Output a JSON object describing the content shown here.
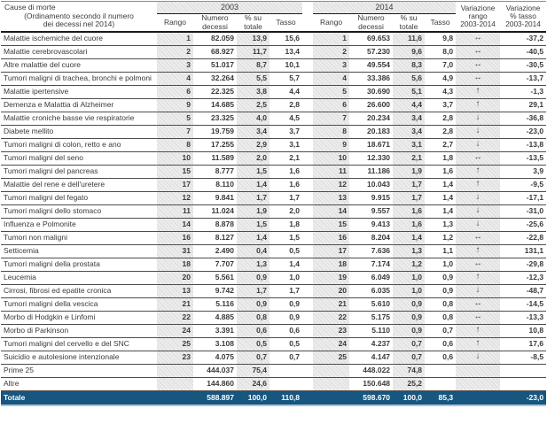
{
  "colors": {
    "total_row_bg": "#17567f",
    "bottom_line": "#a9c7e1",
    "row_border": "#4d4d4d",
    "hatch_gray": "#e4e4e4"
  },
  "table": {
    "header": {
      "cause_title": "Cause di morte",
      "cause_sub1": "(Ordinamento secondo il numero",
      "cause_sub2": "dei decessi nel 2014)",
      "year_left": "2003",
      "year_right": "2014",
      "sub_rank": "Rango",
      "sub_deaths": "Numero decessi",
      "sub_pct": "% su totale",
      "sub_rate": "Tasso",
      "var_rank": [
        "Variazione",
        "rango",
        "2003-2014"
      ],
      "var_rate": [
        "Variazione",
        "% tasso",
        "2003-2014"
      ]
    },
    "rows": [
      {
        "cause": "Malattie ischemiche del cuore",
        "r03": "1",
        "n03": "82.059",
        "p03": "13,9",
        "t03": "15,6",
        "r14": "1",
        "n14": "69.653",
        "p14": "11,6",
        "t14": "9,8",
        "arrow": "↔",
        "var": "-37,2"
      },
      {
        "cause": "Malattie cerebrovascolari",
        "r03": "2",
        "n03": "68.927",
        "p03": "11,7",
        "t03": "13,4",
        "r14": "2",
        "n14": "57.230",
        "p14": "9,6",
        "t14": "8,0",
        "arrow": "↔",
        "var": "-40,5"
      },
      {
        "cause": "Altre malattie del cuore",
        "r03": "3",
        "n03": "51.017",
        "p03": "8,7",
        "t03": "10,1",
        "r14": "3",
        "n14": "49.554",
        "p14": "8,3",
        "t14": "7,0",
        "arrow": "↔",
        "var": "-30,5"
      },
      {
        "cause": "Tumori maligni di trachea, bronchi e polmoni",
        "r03": "4",
        "n03": "32.264",
        "p03": "5,5",
        "t03": "5,7",
        "r14": "4",
        "n14": "33.386",
        "p14": "5,6",
        "t14": "4,9",
        "arrow": "↔",
        "var": "-13,7"
      },
      {
        "cause": "Malattie ipertensive",
        "r03": "6",
        "n03": "22.325",
        "p03": "3,8",
        "t03": "4,4",
        "r14": "5",
        "n14": "30.690",
        "p14": "5,1",
        "t14": "4,3",
        "arrow": "↑",
        "var": "-1,3"
      },
      {
        "cause": "Demenza e Malattia di Alzheimer",
        "r03": "9",
        "n03": "14.685",
        "p03": "2,5",
        "t03": "2,8",
        "r14": "6",
        "n14": "26.600",
        "p14": "4,4",
        "t14": "3,7",
        "arrow": "↑",
        "var": "29,1"
      },
      {
        "cause": "Malattie croniche basse vie respiratorie",
        "r03": "5",
        "n03": "23.325",
        "p03": "4,0",
        "t03": "4,5",
        "r14": "7",
        "n14": "20.234",
        "p14": "3,4",
        "t14": "2,8",
        "arrow": "↓",
        "var": "-36,8"
      },
      {
        "cause": "Diabete mellito",
        "r03": "7",
        "n03": "19.759",
        "p03": "3,4",
        "t03": "3,7",
        "r14": "8",
        "n14": "20.183",
        "p14": "3,4",
        "t14": "2,8",
        "arrow": "↓",
        "var": "-23,0"
      },
      {
        "cause": "Tumori maligni di colon, retto e ano",
        "r03": "8",
        "n03": "17.255",
        "p03": "2,9",
        "t03": "3,1",
        "r14": "9",
        "n14": "18.671",
        "p14": "3,1",
        "t14": "2,7",
        "arrow": "↓",
        "var": "-13,8"
      },
      {
        "cause": "Tumori maligni del seno",
        "r03": "10",
        "n03": "11.589",
        "p03": "2,0",
        "t03": "2,1",
        "r14": "10",
        "n14": "12.330",
        "p14": "2,1",
        "t14": "1,8",
        "arrow": "↔",
        "var": "-13,5"
      },
      {
        "cause": "Tumori maligni del pancreas",
        "r03": "15",
        "n03": "8.777",
        "p03": "1,5",
        "t03": "1,6",
        "r14": "11",
        "n14": "11.186",
        "p14": "1,9",
        "t14": "1,6",
        "arrow": "↑",
        "var": "3,9"
      },
      {
        "cause": "Malattie del rene e dell'uretere",
        "r03": "17",
        "n03": "8.110",
        "p03": "1,4",
        "t03": "1,6",
        "r14": "12",
        "n14": "10.043",
        "p14": "1,7",
        "t14": "1,4",
        "arrow": "↑",
        "var": "-9,5"
      },
      {
        "cause": "Tumori maligni del fegato",
        "r03": "12",
        "n03": "9.841",
        "p03": "1,7",
        "t03": "1,7",
        "r14": "13",
        "n14": "9.915",
        "p14": "1,7",
        "t14": "1,4",
        "arrow": "↓",
        "var": "-17,1"
      },
      {
        "cause": "Tumori maligni dello stomaco",
        "r03": "11",
        "n03": "11.024",
        "p03": "1,9",
        "t03": "2,0",
        "r14": "14",
        "n14": "9.557",
        "p14": "1,6",
        "t14": "1,4",
        "arrow": "↓",
        "var": "-31,0"
      },
      {
        "cause": "Influenza e Polmonite",
        "r03": "14",
        "n03": "8.878",
        "p03": "1,5",
        "t03": "1,8",
        "r14": "15",
        "n14": "9.413",
        "p14": "1,6",
        "t14": "1,3",
        "arrow": "↓",
        "var": "-25,6"
      },
      {
        "cause": "Tumori non maligni",
        "r03": "16",
        "n03": "8.127",
        "p03": "1,4",
        "t03": "1,5",
        "r14": "16",
        "n14": "8.204",
        "p14": "1,4",
        "t14": "1,2",
        "arrow": "↔",
        "var": "-22,8"
      },
      {
        "cause": "Setticemia",
        "r03": "31",
        "n03": "2.490",
        "p03": "0,4",
        "t03": "0,5",
        "r14": "17",
        "n14": "7.636",
        "p14": "1,3",
        "t14": "1,1",
        "arrow": "↑",
        "var": "131,1"
      },
      {
        "cause": "Tumori maligni della prostata",
        "r03": "18",
        "n03": "7.707",
        "p03": "1,3",
        "t03": "1,4",
        "r14": "18",
        "n14": "7.174",
        "p14": "1,2",
        "t14": "1,0",
        "arrow": "↔",
        "var": "-29,8"
      },
      {
        "cause": "Leucemia",
        "r03": "20",
        "n03": "5.561",
        "p03": "0,9",
        "t03": "1,0",
        "r14": "19",
        "n14": "6.049",
        "p14": "1,0",
        "t14": "0,9",
        "arrow": "↑",
        "var": "-12,3"
      },
      {
        "cause": "Cirrosi, fibrosi ed epatite cronica",
        "r03": "13",
        "n03": "9.742",
        "p03": "1,7",
        "t03": "1,7",
        "r14": "20",
        "n14": "6.035",
        "p14": "1,0",
        "t14": "0,9",
        "arrow": "↓",
        "var": "-48,7"
      },
      {
        "cause": "Tumori maligni della vescica",
        "r03": "21",
        "n03": "5.116",
        "p03": "0,9",
        "t03": "0,9",
        "r14": "21",
        "n14": "5.610",
        "p14": "0,9",
        "t14": "0,8",
        "arrow": "↔",
        "var": "-14,5"
      },
      {
        "cause": "Morbo di Hodgkin e Linfomi",
        "r03": "22",
        "n03": "4.885",
        "p03": "0,8",
        "t03": "0,9",
        "r14": "22",
        "n14": "5.175",
        "p14": "0,9",
        "t14": "0,8",
        "arrow": "↔",
        "var": "-13,3"
      },
      {
        "cause": "Morbo di Parkinson",
        "r03": "24",
        "n03": "3.391",
        "p03": "0,6",
        "t03": "0,6",
        "r14": "23",
        "n14": "5.110",
        "p14": "0,9",
        "t14": "0,7",
        "arrow": "↑",
        "var": "10,8"
      },
      {
        "cause": "Tumori maligni del cervello e del SNC",
        "r03": "25",
        "n03": "3.108",
        "p03": "0,5",
        "t03": "0,5",
        "r14": "24",
        "n14": "4.237",
        "p14": "0,7",
        "t14": "0,6",
        "arrow": "↑",
        "var": "17,6"
      },
      {
        "cause": "Suicidio e autolesione intenzionale",
        "r03": "23",
        "n03": "4.075",
        "p03": "0,7",
        "t03": "0,7",
        "r14": "25",
        "n14": "4.147",
        "p14": "0,7",
        "t14": "0,6",
        "arrow": "↓",
        "var": "-8,5"
      }
    ],
    "summary_rows": [
      {
        "cause": "Prime 25",
        "n03": "444.037",
        "p03": "75,4",
        "n14": "448.022",
        "p14": "74,8"
      },
      {
        "cause": "Altre",
        "n03": "144.860",
        "p03": "24,6",
        "n14": "150.648",
        "p14": "25,2"
      }
    ],
    "total_row": {
      "cause": "Totale",
      "n03": "588.897",
      "p03": "100,0",
      "t03": "110,8",
      "n14": "598.670",
      "p14": "100,0",
      "t14": "85,3",
      "var": "-23,0"
    }
  }
}
